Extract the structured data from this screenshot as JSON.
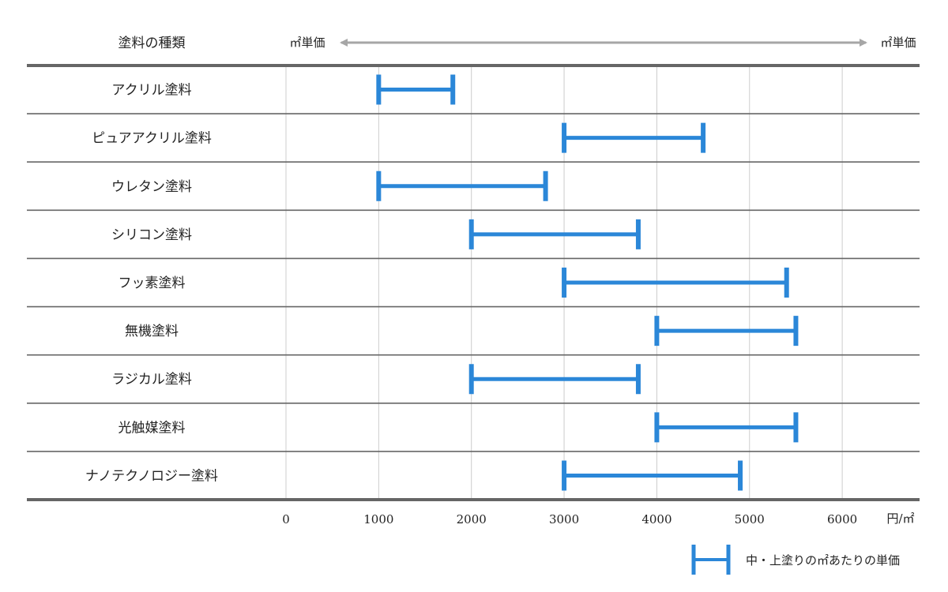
{
  "header": {
    "category_label": "塗料の種類",
    "arrow_left_label": "㎡単価",
    "arrow_right_label": "㎡単価"
  },
  "chart_data": {
    "type": "range-bar",
    "categories": [
      "アクリル塗料",
      "ピュアアクリル塗料",
      "ウレタン塗料",
      "シリコン塗料",
      "フッ素塗料",
      "無機塗料",
      "ラジカル塗料",
      "光触媒塗料",
      "ナノテクノロジー塗料"
    ],
    "ranges": [
      [
        1000,
        1800
      ],
      [
        3000,
        4500
      ],
      [
        1000,
        2800
      ],
      [
        2000,
        3800
      ],
      [
        3000,
        5400
      ],
      [
        4000,
        5500
      ],
      [
        2000,
        3800
      ],
      [
        4000,
        5500
      ],
      [
        3000,
        4900
      ]
    ],
    "xticks": [
      0,
      1000,
      2000,
      3000,
      4000,
      5000,
      6000
    ],
    "xlim": [
      0,
      6800
    ],
    "x_unit": "円/㎡",
    "grid": true,
    "bar_color": "#2b87d8",
    "grid_color": "#cccccc",
    "rule_color": "#666666",
    "arrow_color": "#a6a6a6"
  },
  "legend": {
    "label": "中・上塗りの㎡あたりの単価",
    "placement": "bottom-right"
  }
}
